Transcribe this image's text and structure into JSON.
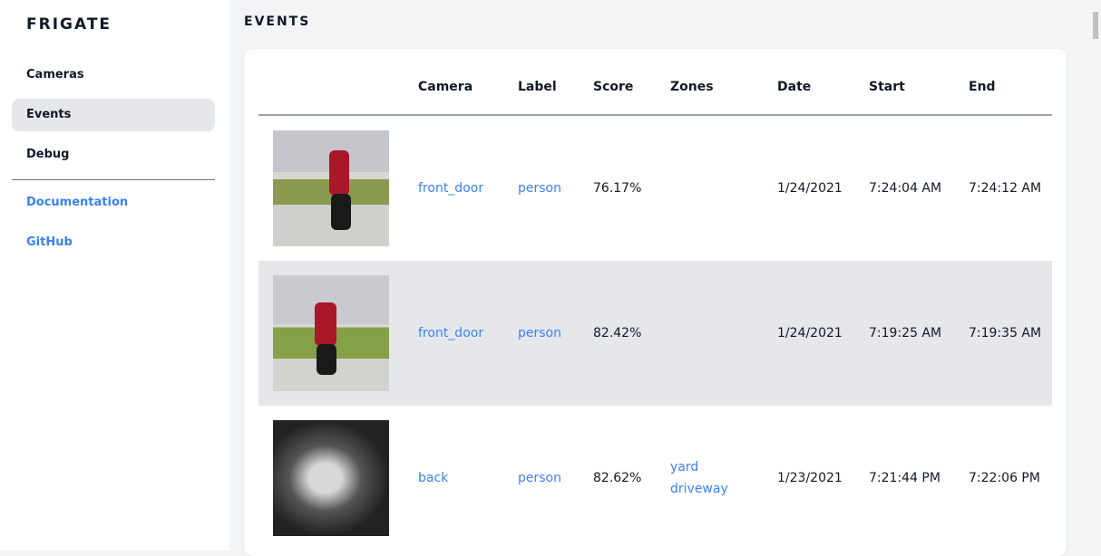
{
  "app": {
    "title": "FRIGATE"
  },
  "sidebar": {
    "items": [
      {
        "label": "Cameras",
        "active": false
      },
      {
        "label": "Events",
        "active": true
      },
      {
        "label": "Debug",
        "active": false
      }
    ],
    "links": [
      {
        "label": "Documentation"
      },
      {
        "label": "GitHub"
      }
    ]
  },
  "page": {
    "title": "EVENTS"
  },
  "table": {
    "headers": [
      "Camera",
      "Label",
      "Score",
      "Zones",
      "Date",
      "Start",
      "End"
    ],
    "rows": [
      {
        "camera": "front_door",
        "label": "person",
        "score": "76.17%",
        "zones": [
          "",
          ""
        ],
        "date": "1/24/2021",
        "start": "7:24:04 AM",
        "end": "7:24:12 AM"
      },
      {
        "camera": "front_door",
        "label": "person",
        "score": "82.42%",
        "zones": [
          "",
          ""
        ],
        "date": "1/24/2021",
        "start": "7:19:25 AM",
        "end": "7:19:35 AM"
      },
      {
        "camera": "back",
        "label": "person",
        "score": "82.62%",
        "zones": [
          "yard",
          "driveway"
        ],
        "date": "1/23/2021",
        "start": "7:21:44 PM",
        "end": "7:22:06 PM"
      }
    ]
  }
}
